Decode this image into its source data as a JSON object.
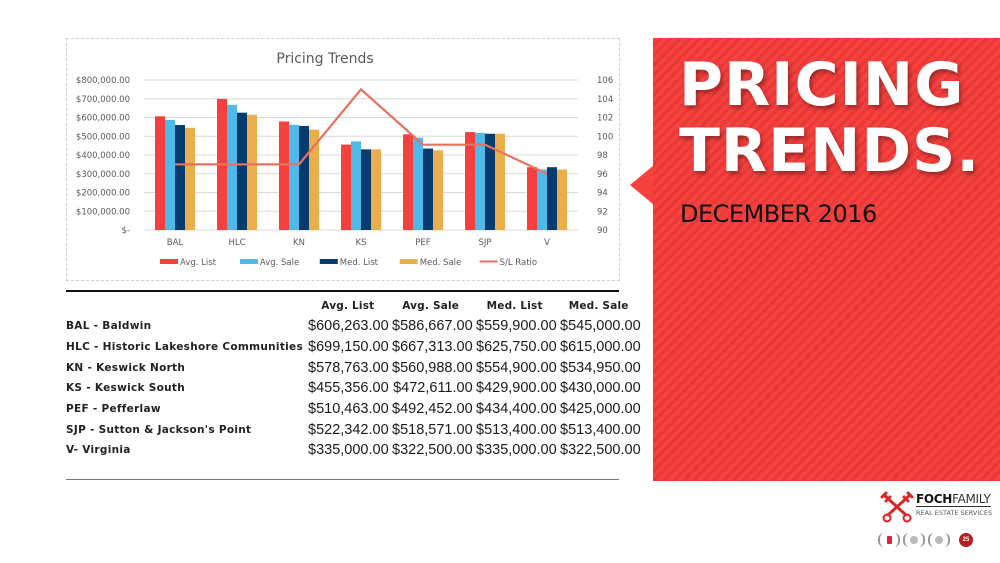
{
  "chart_data": {
    "type": "bar",
    "title": "Pricing Trends",
    "xlabel": "",
    "ylabel": "",
    "categories": [
      "BAL",
      "HLC",
      "KN",
      "KS",
      "PEF",
      "SJP",
      "V"
    ],
    "series": [
      {
        "name": "Avg. List",
        "axis": "left",
        "kind": "bar",
        "color": "#f4413e",
        "values": [
          606263,
          699150,
          578763,
          455356,
          510463,
          522342,
          335000
        ]
      },
      {
        "name": "Avg. Sale",
        "axis": "left",
        "kind": "bar",
        "color": "#4fb9ea",
        "values": [
          586667,
          667313,
          560988,
          472611,
          492452,
          518571,
          322500
        ]
      },
      {
        "name": "Med. List",
        "axis": "left",
        "kind": "bar",
        "color": "#053b6e",
        "values": [
          559900,
          625750,
          554900,
          429900,
          434400,
          513400,
          335000
        ]
      },
      {
        "name": "Med. Sale",
        "axis": "left",
        "kind": "bar",
        "color": "#eaae4d",
        "values": [
          545000,
          615000,
          534950,
          430000,
          425000,
          513400,
          322500
        ]
      },
      {
        "name": "S/L Ratio",
        "axis": "right",
        "kind": "line",
        "color": "#e8715f",
        "values": [
          97.0,
          97.0,
          97.0,
          105.0,
          99.1,
          99.1,
          96.0
        ]
      }
    ],
    "ylim": [
      0,
      800000
    ],
    "y2lim": [
      90,
      106
    ],
    "yticks": [
      "$800,000.00",
      "$700,000.00",
      "$600,000.00",
      "$500,000.00",
      "$400,000.00",
      "$300,000.00",
      "$200,000.00",
      "$100,000.00",
      "$-"
    ],
    "y2ticks": [
      "106",
      "104",
      "102",
      "100",
      "98",
      "96",
      "94",
      "92",
      "90"
    ],
    "grid": true,
    "legend_position": "bottom"
  },
  "table": {
    "headers": [
      "",
      "Avg. List",
      "Avg. Sale",
      "Med. List",
      "Med. Sale"
    ],
    "rows": [
      {
        "area": "BAL - Baldwin",
        "avg_list": "$606,263.00",
        "avg_sale": "$586,667.00",
        "med_list": "$559,900.00",
        "med_sale": "$545,000.00"
      },
      {
        "area": "HLC - Historic Lakeshore Communities",
        "avg_list": "$699,150.00",
        "avg_sale": "$667,313.00",
        "med_list": "$625,750.00",
        "med_sale": "$615,000.00"
      },
      {
        "area": "KN - Keswick North",
        "avg_list": "$578,763.00",
        "avg_sale": "$560,988.00",
        "med_list": "$554,900.00",
        "med_sale": "$534,950.00"
      },
      {
        "area": "KS - Keswick South",
        "avg_list": "$455,356.00",
        "avg_sale": "$472,611.00",
        "med_list": "$429,900.00",
        "med_sale": "$430,000.00"
      },
      {
        "area": "PEF - Pefferlaw",
        "avg_list": "$510,463.00",
        "avg_sale": "$492,452.00",
        "med_list": "$434,400.00",
        "med_sale": "$425,000.00"
      },
      {
        "area": "SJP - Sutton & Jackson's Point",
        "avg_list": "$522,342.00",
        "avg_sale": "$518,571.00",
        "med_list": "$513,400.00",
        "med_sale": "$513,400.00"
      },
      {
        "area": "V- Virginia",
        "avg_list": "$335,000.00",
        "avg_sale": "$322,500.00",
        "med_list": "$335,000.00",
        "med_sale": "$322,500.00"
      }
    ]
  },
  "hero": {
    "title_line1": "PRICING",
    "title_line2": "TRENDS.",
    "subtitle": "DECEMBER 2016",
    "background_color": "#f6413d"
  },
  "brand": {
    "name_bold": "FOCH",
    "name_rest": "FAMILY",
    "tagline": "REAL ESTATE SERVICES",
    "seal_text": "25"
  }
}
